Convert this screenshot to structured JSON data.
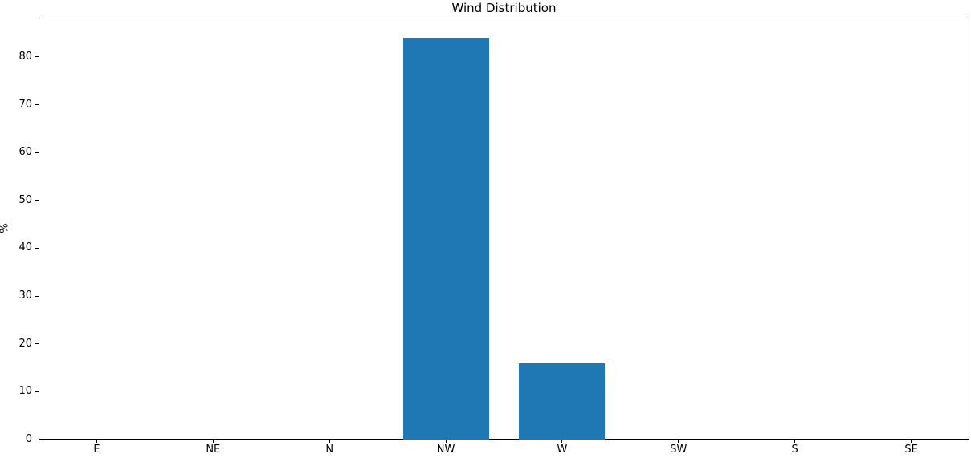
{
  "window": {
    "background_color": "#ffffff",
    "text_color": "#000000"
  },
  "chart_data": {
    "type": "bar",
    "title": "Wind Distribution",
    "xlabel": "",
    "ylabel": "%",
    "categories": [
      "E",
      "NE",
      "N",
      "NW",
      "W",
      "SW",
      "S",
      "SE"
    ],
    "values": [
      0,
      0,
      0,
      84,
      16,
      0,
      0,
      0
    ],
    "yticks": [
      0,
      10,
      20,
      30,
      40,
      50,
      60,
      70,
      80
    ],
    "ylim": [
      0,
      88.2
    ],
    "bar_color": "#1f77b4",
    "spine_color": "#000000",
    "grid": false,
    "legend_position": "none"
  }
}
